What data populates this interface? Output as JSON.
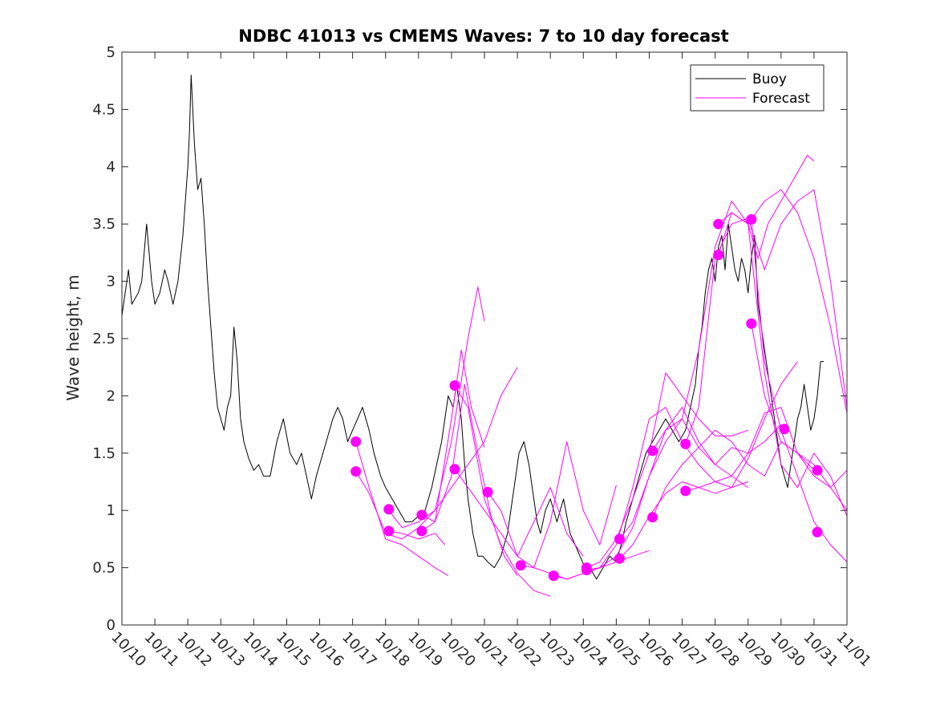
{
  "chart_data": {
    "type": "line",
    "title": "NDBC 41013 vs CMEMS Waves: 7 to 10 day forecast",
    "ylabel": "Wave height, m",
    "xlabel": "",
    "xlim": [
      0,
      22
    ],
    "ylim": [
      0,
      5
    ],
    "yticks": [
      0,
      0.5,
      1,
      1.5,
      2,
      2.5,
      3,
      3.5,
      4,
      4.5,
      5
    ],
    "xticks": [
      0,
      1,
      2,
      3,
      4,
      5,
      6,
      7,
      8,
      9,
      10,
      11,
      12,
      13,
      14,
      15,
      16,
      17,
      18,
      19,
      20,
      21,
      22
    ],
    "xtick_labels": [
      "10/10",
      "10/11",
      "10/12",
      "10/13",
      "10/14",
      "10/15",
      "10/16",
      "10/17",
      "10/18",
      "10/19",
      "10/20",
      "10/21",
      "10/22",
      "10/23",
      "10/24",
      "10/25",
      "10/26",
      "10/27",
      "10/28",
      "10/29",
      "10/30",
      "10/31",
      "11/01"
    ],
    "legend": {
      "position": "top-right",
      "entries": [
        {
          "label": "Buoy",
          "color": "#000000"
        },
        {
          "label": "Forecast",
          "color": "#ff00ff"
        }
      ]
    },
    "buoy": {
      "name": "Buoy",
      "color": "#000000",
      "x": [
        0,
        0.2,
        0.3,
        0.5,
        0.6,
        0.75,
        0.9,
        1.0,
        1.15,
        1.3,
        1.4,
        1.55,
        1.7,
        1.85,
        1.95,
        2.0,
        2.05,
        2.1,
        2.2,
        2.3,
        2.4,
        2.5,
        2.6,
        2.7,
        2.8,
        2.9,
        3.0,
        3.1,
        3.2,
        3.3,
        3.4,
        3.5,
        3.6,
        3.7,
        3.85,
        4.0,
        4.15,
        4.3,
        4.5,
        4.7,
        4.9,
        5.1,
        5.3,
        5.45,
        5.6,
        5.75,
        5.9,
        6.1,
        6.2,
        6.3,
        6.4,
        6.55,
        6.7,
        6.85,
        7.0,
        7.15,
        7.3,
        7.5,
        7.65,
        7.85,
        8.0,
        8.2,
        8.4,
        8.6,
        8.8,
        9.0,
        9.2,
        9.4,
        9.55,
        9.7,
        9.8,
        9.9,
        10.05,
        10.15,
        10.3,
        10.4,
        10.5,
        10.65,
        10.8,
        10.95,
        11.1,
        11.3,
        11.5,
        11.7,
        11.9,
        12.05,
        12.2,
        12.35,
        12.5,
        12.6,
        12.7,
        12.85,
        13.0,
        13.2,
        13.4,
        13.6,
        13.75,
        13.9,
        14.05,
        14.2,
        14.4,
        14.5,
        14.6,
        14.8,
        15.0,
        15.15,
        15.3,
        15.5,
        15.7,
        15.9,
        16.1,
        16.3,
        16.5,
        16.7,
        16.9,
        17.1,
        17.25,
        17.4,
        17.5,
        17.6,
        17.7,
        17.8,
        17.9,
        18.0,
        18.1,
        18.2,
        18.3,
        18.4,
        18.5,
        18.6,
        18.7,
        18.8,
        18.9,
        19.0,
        19.1,
        19.2,
        19.3,
        19.4,
        19.5,
        19.6,
        19.7,
        19.8,
        19.9,
        20.0,
        20.1,
        20.2,
        20.3,
        20.4,
        20.5,
        20.6,
        20.7,
        20.8,
        20.9,
        21.0,
        21.1,
        21.2,
        21.3
      ],
      "y": [
        2.7,
        3.1,
        2.8,
        2.9,
        3.0,
        3.5,
        3.0,
        2.8,
        2.9,
        3.1,
        3.0,
        2.8,
        3.0,
        3.4,
        3.8,
        4.0,
        4.3,
        4.8,
        4.2,
        3.8,
        3.9,
        3.5,
        3.0,
        2.6,
        2.2,
        1.9,
        1.8,
        1.7,
        1.9,
        2.0,
        2.6,
        2.3,
        1.8,
        1.6,
        1.45,
        1.35,
        1.4,
        1.3,
        1.3,
        1.6,
        1.8,
        1.5,
        1.4,
        1.5,
        1.3,
        1.1,
        1.3,
        1.5,
        1.6,
        1.7,
        1.8,
        1.9,
        1.8,
        1.6,
        1.7,
        1.8,
        1.9,
        1.7,
        1.5,
        1.3,
        1.2,
        1.1,
        1.0,
        0.9,
        0.9,
        0.95,
        1.0,
        1.2,
        1.4,
        1.6,
        1.8,
        2.0,
        1.9,
        2.1,
        1.8,
        1.4,
        1.1,
        0.8,
        0.6,
        0.6,
        0.55,
        0.5,
        0.6,
        0.8,
        1.2,
        1.5,
        1.6,
        1.4,
        1.1,
        0.9,
        0.8,
        1.0,
        1.1,
        0.9,
        1.1,
        0.8,
        0.7,
        0.6,
        0.5,
        0.5,
        0.4,
        0.45,
        0.5,
        0.6,
        0.55,
        0.7,
        0.9,
        1.1,
        1.3,
        1.5,
        1.6,
        1.7,
        1.8,
        1.7,
        1.6,
        1.7,
        1.9,
        2.1,
        2.4,
        2.6,
        2.9,
        3.1,
        3.2,
        3.0,
        3.3,
        3.4,
        3.1,
        3.5,
        3.3,
        3.1,
        3.0,
        3.2,
        3.1,
        2.9,
        3.2,
        3.4,
        2.8,
        2.6,
        2.4,
        2.2,
        2.0,
        1.8,
        1.6,
        1.4,
        1.3,
        1.2,
        1.4,
        1.6,
        1.8,
        1.9,
        2.1,
        1.9,
        1.7,
        1.8,
        2.0,
        2.3,
        2.3
      ]
    },
    "forecast_lines": [
      {
        "name": "Forecast",
        "color": "#ff00ff",
        "x": [
          7.1,
          7.5,
          8.0,
          8.5,
          9.0,
          9.5,
          10.0,
          10.5,
          10.8,
          11.0
        ],
        "y": [
          1.34,
          1.15,
          0.8,
          0.75,
          0.85,
          1.0,
          1.6,
          2.5,
          2.95,
          2.65
        ]
      },
      {
        "name": "Forecast",
        "color": "#ff00ff",
        "x": [
          7.1,
          7.5,
          8.0,
          8.5,
          9.0,
          9.5,
          9.9
        ],
        "y": [
          1.6,
          1.2,
          0.75,
          0.7,
          0.6,
          0.5,
          0.43
        ]
      },
      {
        "name": "Forecast",
        "color": "#ff00ff",
        "x": [
          8.1,
          8.5,
          9.0,
          9.5,
          10.0,
          10.5,
          11.0,
          11.5,
          12.0
        ],
        "y": [
          1.0,
          0.85,
          0.9,
          1.0,
          1.2,
          1.4,
          1.6,
          2.0,
          2.25
        ]
      },
      {
        "name": "Forecast",
        "color": "#ff00ff",
        "x": [
          8.1,
          8.5,
          9.0,
          9.5,
          9.8
        ],
        "y": [
          0.82,
          0.8,
          0.75,
          0.8,
          0.7
        ]
      },
      {
        "name": "Forecast",
        "color": "#ff00ff",
        "x": [
          9.1,
          9.5,
          10.0,
          10.3,
          10.6,
          11.0
        ],
        "y": [
          0.96,
          0.9,
          1.8,
          2.4,
          1.9,
          1.55
        ]
      },
      {
        "name": "Forecast",
        "color": "#ff00ff",
        "x": [
          9.1,
          9.5,
          10.0,
          10.4,
          10.8,
          11.2,
          11.6,
          12.0
        ],
        "y": [
          0.82,
          0.9,
          1.3,
          2.1,
          1.5,
          0.95,
          0.6,
          0.43
        ]
      },
      {
        "name": "Forecast",
        "color": "#ff00ff",
        "x": [
          10.1,
          10.5,
          11.0,
          11.5,
          12.0,
          12.5,
          13.0
        ],
        "y": [
          2.09,
          1.9,
          1.1,
          0.7,
          0.45,
          0.3,
          0.25
        ]
      },
      {
        "name": "Forecast",
        "color": "#ff00ff",
        "x": [
          10.1,
          10.5,
          11.0,
          11.5,
          12.0,
          12.5,
          13.0,
          13.5,
          14.0
        ],
        "y": [
          1.36,
          1.2,
          1.0,
          0.8,
          0.6,
          0.9,
          1.2,
          0.8,
          0.6
        ]
      },
      {
        "name": "Forecast",
        "color": "#ff00ff",
        "x": [
          11.1,
          11.5,
          12.0,
          12.5,
          13.0,
          13.5,
          14.0,
          14.5,
          15.0
        ],
        "y": [
          1.16,
          1.0,
          0.6,
          0.5,
          0.9,
          1.6,
          1.0,
          0.7,
          1.22
        ]
      },
      {
        "name": "Forecast",
        "color": "#ff00ff",
        "x": [
          12.1,
          12.5,
          13.0,
          13.5,
          14.0,
          14.5,
          15.0,
          15.5,
          16.0
        ],
        "y": [
          0.52,
          0.5,
          0.45,
          0.4,
          0.45,
          0.5,
          0.55,
          0.6,
          0.65
        ]
      },
      {
        "name": "Forecast",
        "color": "#ff00ff",
        "x": [
          13.1,
          13.5,
          14.0,
          14.5,
          15.0,
          15.5,
          16.0,
          16.5,
          17.0,
          17.5,
          18.0,
          18.5,
          19.0
        ],
        "y": [
          0.43,
          0.4,
          0.45,
          0.5,
          0.7,
          1.2,
          1.8,
          1.9,
          1.6,
          1.4,
          1.25,
          1.2,
          1.25
        ]
      },
      {
        "name": "Forecast",
        "color": "#ff00ff",
        "x": [
          14.1,
          14.5,
          15.0,
          15.5,
          16.0,
          16.5,
          17.0,
          17.5,
          18.0,
          18.5,
          19.0
        ],
        "y": [
          0.5,
          0.55,
          0.75,
          1.1,
          1.5,
          2.2,
          2.0,
          1.8,
          1.65,
          1.65,
          1.7
        ]
      },
      {
        "name": "Forecast",
        "color": "#ff00ff",
        "x": [
          14.1,
          14.5,
          15.0,
          15.5,
          16.0,
          16.5,
          17.0,
          17.5,
          18.0,
          18.5,
          19.0
        ],
        "y": [
          0.48,
          0.5,
          0.6,
          0.85,
          1.3,
          1.7,
          1.9,
          1.6,
          1.4,
          1.3,
          1.2
        ]
      },
      {
        "name": "Forecast",
        "color": "#ff00ff",
        "x": [
          15.1,
          15.5,
          16.0,
          16.5,
          17.0,
          17.5,
          18.0,
          18.5,
          19.0,
          19.5,
          20.0
        ],
        "y": [
          0.75,
          0.9,
          1.3,
          1.6,
          1.8,
          1.55,
          1.4,
          1.55,
          1.5,
          1.6,
          1.75
        ]
      },
      {
        "name": "Forecast",
        "color": "#ff00ff",
        "x": [
          15.1,
          15.5,
          16.0,
          16.5,
          17.0,
          17.5,
          18.0,
          18.5,
          19.0,
          19.5,
          20.0,
          20.5
        ],
        "y": [
          0.58,
          0.7,
          0.95,
          1.15,
          1.25,
          1.2,
          1.15,
          1.2,
          1.45,
          1.8,
          2.1,
          2.3
        ]
      },
      {
        "name": "Forecast",
        "color": "#ff00ff",
        "x": [
          16.1,
          16.5,
          17.0,
          17.5,
          18.0,
          18.5,
          19.0,
          19.5,
          20.0,
          20.5,
          21.0,
          21.5,
          22.0
        ],
        "y": [
          1.52,
          1.7,
          1.8,
          2.4,
          3.3,
          3.7,
          3.5,
          3.7,
          3.8,
          3.6,
          3.2,
          2.6,
          1.85
        ]
      },
      {
        "name": "Forecast",
        "color": "#ff00ff",
        "x": [
          16.1,
          16.5,
          17.0,
          17.5,
          18.0,
          18.5,
          19.0,
          19.5,
          20.0,
          20.5,
          21.0,
          21.5,
          22.0
        ],
        "y": [
          0.94,
          1.2,
          1.4,
          1.55,
          1.7,
          1.6,
          1.4,
          1.3,
          1.6,
          1.5,
          1.3,
          1.2,
          1.35
        ]
      },
      {
        "name": "Forecast",
        "color": "#ff00ff",
        "x": [
          17.1,
          17.5,
          18.0,
          18.5,
          19.0,
          19.5,
          20.0,
          20.5,
          21.0,
          21.5,
          22.0
        ],
        "y": [
          1.58,
          1.9,
          3.2,
          3.5,
          3.55,
          3.1,
          3.5,
          3.7,
          3.8,
          3.0,
          1.9
        ]
      },
      {
        "name": "Forecast",
        "color": "#ff00ff",
        "x": [
          17.1,
          17.5,
          18.0,
          18.5,
          19.0,
          19.5,
          20.0,
          20.5,
          21.0,
          21.5,
          22.0
        ],
        "y": [
          1.17,
          1.2,
          1.25,
          1.3,
          1.5,
          1.85,
          1.9,
          1.5,
          1.4,
          1.2,
          1.0
        ]
      },
      {
        "name": "Forecast",
        "color": "#ff00ff",
        "x": [
          18.1,
          18.5,
          19.0,
          19.3,
          19.6,
          20.0,
          20.5,
          20.8,
          21.0
        ],
        "y": [
          3.5,
          3.6,
          3.5,
          3.2,
          3.5,
          3.7,
          3.95,
          4.1,
          4.05
        ]
      },
      {
        "name": "Forecast",
        "color": "#ff00ff",
        "x": [
          18.1,
          18.5,
          19.0,
          19.5,
          20.0,
          20.5,
          21.0,
          21.5,
          22.0
        ],
        "y": [
          3.23,
          3.6,
          3.5,
          2.2,
          1.4,
          1.2,
          1.5,
          1.3,
          0.95
        ]
      },
      {
        "name": "Forecast",
        "color": "#ff00ff",
        "x": [
          19.1,
          19.5,
          20.0,
          20.5,
          21.0,
          21.5,
          22.0
        ],
        "y": [
          3.54,
          2.3,
          1.7,
          1.3,
          0.9,
          0.7,
          0.55
        ]
      },
      {
        "name": "Forecast",
        "color": "#ff00ff",
        "x": [
          19.1,
          19.5,
          20.0,
          20.5,
          21.0
        ],
        "y": [
          2.63,
          2.0,
          1.6,
          1.5,
          1.35
        ]
      }
    ],
    "forecast_markers": {
      "name": "Forecast",
      "color": "#ff00ff",
      "points": [
        {
          "x": 7.1,
          "y": 1.6
        },
        {
          "x": 7.1,
          "y": 1.34
        },
        {
          "x": 8.1,
          "y": 1.01
        },
        {
          "x": 8.1,
          "y": 0.82
        },
        {
          "x": 9.1,
          "y": 0.96
        },
        {
          "x": 9.1,
          "y": 0.82
        },
        {
          "x": 10.1,
          "y": 2.09
        },
        {
          "x": 10.1,
          "y": 1.36
        },
        {
          "x": 11.1,
          "y": 1.16
        },
        {
          "x": 12.1,
          "y": 0.52
        },
        {
          "x": 13.1,
          "y": 0.43
        },
        {
          "x": 14.1,
          "y": 0.5
        },
        {
          "x": 14.1,
          "y": 0.48
        },
        {
          "x": 15.1,
          "y": 0.75
        },
        {
          "x": 15.1,
          "y": 0.58
        },
        {
          "x": 16.1,
          "y": 1.52
        },
        {
          "x": 16.1,
          "y": 0.94
        },
        {
          "x": 17.1,
          "y": 1.58
        },
        {
          "x": 17.1,
          "y": 1.17
        },
        {
          "x": 18.1,
          "y": 3.5
        },
        {
          "x": 18.1,
          "y": 3.23
        },
        {
          "x": 19.1,
          "y": 3.54
        },
        {
          "x": 19.1,
          "y": 2.63
        },
        {
          "x": 20.1,
          "y": 1.71
        },
        {
          "x": 21.1,
          "y": 1.35
        },
        {
          "x": 21.1,
          "y": 0.81
        }
      ]
    }
  }
}
